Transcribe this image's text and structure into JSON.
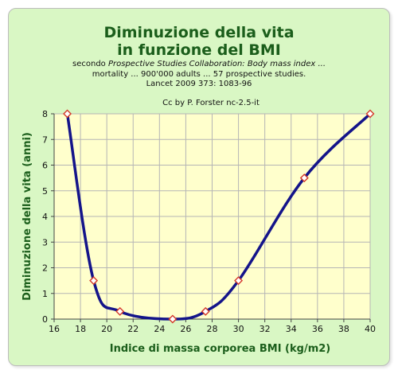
{
  "chart_data": {
    "type": "line",
    "title_line1": "Diminuzione della vita",
    "title_line2": "in funzione del BMI",
    "subtitle_prefix": "secondo ",
    "subtitle_italic_1": "Prospective Studies Collaboration: Body mass index ...",
    "subtitle_italic_2": "mortality ... 900'000 adults ... 57 prospective studies.",
    "subtitle_line3": "Lancet 2009 373: 1083-96",
    "credit": "Cc by P. Forster nc-2.5-it",
    "xlabel": "Indice di massa corporea BMI (kg/m2)",
    "ylabel": "Diminuzione della vita (anni)",
    "xlim": [
      16,
      40
    ],
    "ylim": [
      0,
      8
    ],
    "x_ticks": [
      16,
      18,
      20,
      22,
      24,
      26,
      28,
      30,
      32,
      34,
      36,
      38,
      40
    ],
    "y_ticks": [
      0,
      1,
      2,
      3,
      4,
      5,
      6,
      7,
      8
    ],
    "grid": true,
    "series": [
      {
        "x": [
          17,
          19,
          21,
          25,
          27.5,
          30,
          35,
          40
        ],
        "y": [
          8,
          1.5,
          0.3,
          0,
          0.3,
          1.5,
          5.5,
          8
        ]
      }
    ],
    "colors": {
      "line": "#14148a",
      "marker_fill": "#ffffff",
      "marker_stroke": "#d43a2a",
      "plot_bg": "#ffffcc",
      "grid": "#b5b5b5",
      "title": "#1b5e1b",
      "axis_label": "#1b5e1b"
    }
  }
}
